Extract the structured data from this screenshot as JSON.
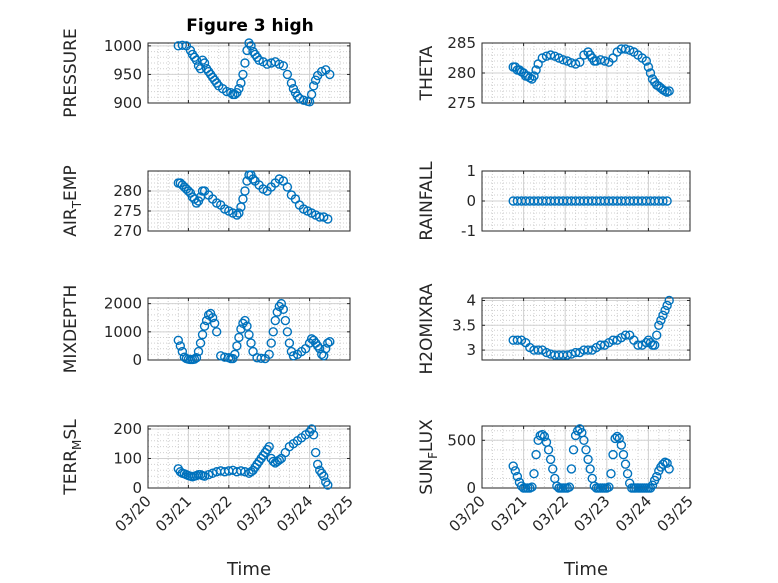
{
  "figure": {
    "title": "Figure 3 high"
  },
  "chart_data": [
    {
      "type": "scatter",
      "id": "pressure",
      "ylabel": "PRESSURE",
      "ylim": [
        900,
        1005
      ],
      "yticks": [
        {
          "v": 900,
          "t": "900"
        },
        {
          "v": 950,
          "t": "950"
        },
        {
          "v": 1000,
          "t": "1000"
        }
      ],
      "series": [
        {
          "x": [
            20.75,
            20.85,
            20.95,
            21.05,
            21.1,
            21.15,
            21.2,
            21.25,
            21.3,
            21.35,
            21.4,
            21.45,
            21.5,
            21.55,
            21.6,
            21.65,
            21.7,
            21.75,
            21.85,
            21.95,
            22.05,
            22.1,
            22.15,
            22.2,
            22.25,
            22.3,
            22.35,
            22.4,
            22.45,
            22.5,
            22.55,
            22.6,
            22.65,
            22.7,
            22.75,
            22.85,
            22.95,
            23.05,
            23.15,
            23.25,
            23.35,
            23.45,
            23.55,
            23.6,
            23.65,
            23.7,
            23.75,
            23.85,
            23.95,
            24.0,
            24.05,
            24.1,
            24.15,
            24.2,
            24.3,
            24.4,
            24.5
          ],
          "y": [
            1000,
            1001,
            1000,
            992,
            985,
            980,
            975,
            965,
            960,
            975,
            970,
            960,
            955,
            950,
            945,
            940,
            935,
            930,
            925,
            920,
            918,
            915,
            915,
            918,
            925,
            935,
            950,
            970,
            992,
            1005,
            1000,
            990,
            985,
            980,
            975,
            972,
            968,
            970,
            972,
            968,
            965,
            950,
            935,
            925,
            918,
            912,
            908,
            905,
            903,
            902,
            915,
            930,
            940,
            948,
            955,
            958,
            950
          ]
        }
      ]
    },
    {
      "type": "scatter",
      "id": "theta",
      "ylabel": "THETA",
      "ylim": [
        275,
        285
      ],
      "yticks": [
        {
          "v": 275,
          "t": "275"
        },
        {
          "v": 280,
          "t": "280"
        },
        {
          "v": 285,
          "t": "285"
        }
      ],
      "series": [
        {
          "x": [
            20.75,
            20.8,
            20.85,
            20.9,
            20.95,
            21.0,
            21.05,
            21.1,
            21.15,
            21.2,
            21.25,
            21.3,
            21.35,
            21.45,
            21.55,
            21.65,
            21.75,
            21.85,
            21.95,
            22.05,
            22.15,
            22.25,
            22.35,
            22.45,
            22.55,
            22.6,
            22.65,
            22.7,
            22.75,
            22.85,
            22.95,
            23.05,
            23.15,
            23.25,
            23.35,
            23.45,
            23.55,
            23.65,
            23.75,
            23.85,
            23.95,
            24.0,
            24.05,
            24.1,
            24.15,
            24.2,
            24.25,
            24.3,
            24.35,
            24.4,
            24.45,
            24.5
          ],
          "y": [
            281,
            281,
            280.5,
            280.5,
            280.2,
            280,
            279.5,
            279.5,
            279.2,
            279,
            279.5,
            280.5,
            281.5,
            282.5,
            282.8,
            283,
            282.8,
            282.5,
            282.2,
            282,
            281.7,
            281.5,
            281.8,
            283,
            283.5,
            283,
            282.5,
            282,
            282,
            282.2,
            282,
            281.8,
            282.5,
            283.5,
            284,
            284,
            283.8,
            283.5,
            283,
            282.5,
            282,
            281,
            280,
            279,
            278.5,
            278,
            277.8,
            277.5,
            277.2,
            277,
            276.8,
            277
          ]
        }
      ]
    },
    {
      "type": "scatter",
      "id": "air_temp",
      "ylabel": "AIR_TEMP",
      "ylim": [
        270,
        285
      ],
      "yticks": [
        {
          "v": 270,
          "t": "270"
        },
        {
          "v": 275,
          "t": "275"
        },
        {
          "v": 280,
          "t": "280"
        }
      ],
      "series": [
        {
          "x": [
            20.75,
            20.8,
            20.85,
            20.9,
            20.95,
            21.0,
            21.05,
            21.1,
            21.15,
            21.2,
            21.25,
            21.3,
            21.35,
            21.4,
            21.5,
            21.6,
            21.7,
            21.8,
            21.9,
            22.0,
            22.1,
            22.2,
            22.25,
            22.3,
            22.35,
            22.4,
            22.45,
            22.5,
            22.55,
            22.6,
            22.65,
            22.75,
            22.85,
            22.95,
            23.05,
            23.15,
            23.25,
            23.35,
            23.45,
            23.55,
            23.65,
            23.75,
            23.85,
            23.95,
            24.05,
            24.15,
            24.25,
            24.35,
            24.45
          ],
          "y": [
            282,
            282,
            281.5,
            281,
            280.5,
            280,
            279.5,
            278.5,
            278,
            277,
            277.5,
            278.5,
            280,
            280,
            279,
            278,
            277,
            276.5,
            275.5,
            275,
            274.5,
            274,
            274.5,
            276,
            278,
            280,
            282.5,
            284,
            284,
            283,
            282.5,
            281.5,
            280.5,
            280,
            281,
            282,
            283,
            282.5,
            281,
            279,
            278,
            276.5,
            275.5,
            275,
            274.5,
            274,
            273.5,
            273.5,
            273
          ]
        }
      ]
    },
    {
      "type": "scatter",
      "id": "rainfall",
      "ylabel": "RAINFALL",
      "ylim": [
        -1,
        1
      ],
      "yticks": [
        {
          "v": -1,
          "t": "-1"
        },
        {
          "v": 0,
          "t": "0"
        },
        {
          "v": 1,
          "t": "1"
        }
      ],
      "series": [
        {
          "x": [
            20.75,
            20.85,
            20.95,
            21.05,
            21.15,
            21.25,
            21.35,
            21.45,
            21.55,
            21.65,
            21.75,
            21.85,
            21.95,
            22.05,
            22.15,
            22.25,
            22.35,
            22.45,
            22.55,
            22.65,
            22.75,
            22.85,
            22.95,
            23.05,
            23.15,
            23.25,
            23.35,
            23.45,
            23.55,
            23.65,
            23.75,
            23.85,
            23.95,
            24.05,
            24.15,
            24.25,
            24.35,
            24.45
          ],
          "y": [
            0,
            0,
            0,
            0,
            0,
            0,
            0,
            0,
            0,
            0,
            0,
            0,
            0,
            0,
            0,
            0,
            0,
            0,
            0,
            0,
            0,
            0,
            0,
            0,
            0,
            0,
            0,
            0,
            0,
            0,
            0,
            0,
            0,
            0,
            0,
            0,
            0,
            0
          ]
        }
      ]
    },
    {
      "type": "scatter",
      "id": "mixdepth",
      "ylabel": "MIXDEPTH",
      "ylim": [
        0,
        2200
      ],
      "yticks": [
        {
          "v": 0,
          "t": "0"
        },
        {
          "v": 1000,
          "t": "1000"
        },
        {
          "v": 2000,
          "t": "2000"
        }
      ],
      "series": [
        {
          "x": [
            20.75,
            20.8,
            20.85,
            20.9,
            20.95,
            21.0,
            21.05,
            21.1,
            21.15,
            21.2,
            21.25,
            21.3,
            21.35,
            21.4,
            21.45,
            21.5,
            21.55,
            21.6,
            21.65,
            21.7,
            21.8,
            21.9,
            22.0,
            22.05,
            22.1,
            22.15,
            22.2,
            22.25,
            22.3,
            22.35,
            22.4,
            22.45,
            22.5,
            22.55,
            22.6,
            22.7,
            22.8,
            22.9,
            23.0,
            23.05,
            23.1,
            23.15,
            23.2,
            23.25,
            23.3,
            23.35,
            23.4,
            23.45,
            23.5,
            23.55,
            23.6,
            23.7,
            23.8,
            23.9,
            24.0,
            24.05,
            24.1,
            24.15,
            24.2,
            24.25,
            24.3,
            24.35,
            24.4,
            24.45,
            24.5
          ],
          "y": [
            700,
            500,
            300,
            100,
            50,
            30,
            20,
            20,
            30,
            80,
            300,
            600,
            900,
            1200,
            1400,
            1600,
            1650,
            1500,
            1300,
            1000,
            150,
            100,
            80,
            50,
            50,
            200,
            500,
            800,
            1100,
            1300,
            1400,
            1200,
            900,
            600,
            300,
            80,
            60,
            50,
            200,
            600,
            1000,
            1400,
            1700,
            1900,
            2000,
            1800,
            1400,
            1000,
            600,
            300,
            150,
            200,
            300,
            400,
            600,
            750,
            700,
            600,
            500,
            400,
            200,
            150,
            400,
            600,
            650
          ]
        }
      ]
    },
    {
      "type": "scatter",
      "id": "h2omixra",
      "ylabel": "H2OMIXRA",
      "ylim": [
        2.8,
        4.05
      ],
      "yticks": [
        {
          "v": 3,
          "t": "3"
        },
        {
          "v": 3.5,
          "t": "3.5"
        },
        {
          "v": 4,
          "t": "4"
        }
      ],
      "series": [
        {
          "x": [
            20.75,
            20.85,
            20.95,
            21.05,
            21.15,
            21.25,
            21.35,
            21.45,
            21.55,
            21.65,
            21.75,
            21.85,
            21.95,
            22.05,
            22.15,
            22.25,
            22.35,
            22.45,
            22.55,
            22.65,
            22.75,
            22.85,
            22.95,
            23.05,
            23.15,
            23.25,
            23.35,
            23.45,
            23.55,
            23.65,
            23.75,
            23.85,
            23.95,
            24.0,
            24.05,
            24.1,
            24.15,
            24.2,
            24.25,
            24.3,
            24.35,
            24.4,
            24.45,
            24.5
          ],
          "y": [
            3.2,
            3.2,
            3.2,
            3.15,
            3.05,
            3.0,
            3.0,
            3.0,
            2.95,
            2.92,
            2.9,
            2.9,
            2.9,
            2.9,
            2.92,
            2.95,
            2.95,
            3.0,
            3.0,
            3.0,
            3.05,
            3.1,
            3.1,
            3.15,
            3.2,
            3.2,
            3.25,
            3.3,
            3.3,
            3.2,
            3.1,
            3.1,
            3.15,
            3.2,
            3.15,
            3.1,
            3.1,
            3.3,
            3.5,
            3.6,
            3.7,
            3.8,
            3.9,
            4.0
          ]
        }
      ]
    },
    {
      "type": "scatter",
      "id": "terr_msl",
      "ylabel": "TERR_MSL",
      "ylim": [
        0,
        210
      ],
      "yticks": [
        {
          "v": 0,
          "t": "0"
        },
        {
          "v": 100,
          "t": "100"
        },
        {
          "v": 200,
          "t": "200"
        }
      ],
      "series": [
        {
          "x": [
            20.75,
            20.8,
            20.85,
            20.9,
            20.95,
            21.0,
            21.05,
            21.1,
            21.15,
            21.2,
            21.25,
            21.3,
            21.35,
            21.4,
            21.5,
            21.6,
            21.7,
            21.8,
            21.9,
            22.0,
            22.1,
            22.2,
            22.3,
            22.4,
            22.5,
            22.55,
            22.6,
            22.65,
            22.7,
            22.75,
            22.8,
            22.85,
            22.9,
            22.95,
            23.0,
            23.05,
            23.1,
            23.15,
            23.2,
            23.25,
            23.3,
            23.4,
            23.5,
            23.6,
            23.7,
            23.8,
            23.9,
            24.0,
            24.05,
            24.1,
            24.15,
            24.2,
            24.25,
            24.3,
            24.35,
            24.4,
            24.45
          ],
          "y": [
            65,
            55,
            50,
            48,
            45,
            42,
            40,
            38,
            40,
            42,
            45,
            45,
            42,
            40,
            45,
            50,
            55,
            58,
            55,
            58,
            60,
            55,
            58,
            55,
            50,
            55,
            60,
            70,
            80,
            90,
            100,
            110,
            120,
            130,
            140,
            100,
            90,
            85,
            90,
            95,
            100,
            120,
            140,
            150,
            160,
            170,
            180,
            190,
            200,
            180,
            120,
            80,
            60,
            50,
            40,
            20,
            10
          ]
        }
      ]
    },
    {
      "type": "scatter",
      "id": "sun_flux",
      "ylabel": "SUN_FLUX",
      "ylim": [
        0,
        650
      ],
      "yticks": [
        {
          "v": 0,
          "t": "0"
        },
        {
          "v": 500,
          "t": "500"
        }
      ],
      "series": [
        {
          "x": [
            20.75,
            20.8,
            20.85,
            20.9,
            20.95,
            21.0,
            21.05,
            21.1,
            21.15,
            21.2,
            21.25,
            21.3,
            21.35,
            21.4,
            21.45,
            21.5,
            21.55,
            21.6,
            21.65,
            21.7,
            21.75,
            21.8,
            21.85,
            21.9,
            21.95,
            22.0,
            22.05,
            22.1,
            22.15,
            22.2,
            22.25,
            22.3,
            22.35,
            22.4,
            22.45,
            22.5,
            22.55,
            22.6,
            22.65,
            22.7,
            22.75,
            22.8,
            22.85,
            22.9,
            22.95,
            23.0,
            23.05,
            23.1,
            23.15,
            23.2,
            23.25,
            23.3,
            23.35,
            23.4,
            23.45,
            23.5,
            23.55,
            23.6,
            23.65,
            23.7,
            23.75,
            23.8,
            23.85,
            23.9,
            23.95,
            24.0,
            24.05,
            24.1,
            24.15,
            24.2,
            24.25,
            24.3,
            24.35,
            24.4,
            24.45,
            24.5
          ],
          "y": [
            230,
            180,
            120,
            60,
            20,
            0,
            0,
            0,
            0,
            10,
            150,
            350,
            500,
            550,
            560,
            540,
            480,
            400,
            300,
            200,
            100,
            20,
            0,
            0,
            0,
            0,
            0,
            10,
            200,
            400,
            550,
            600,
            620,
            580,
            500,
            400,
            300,
            200,
            100,
            20,
            0,
            0,
            0,
            0,
            0,
            0,
            10,
            150,
            350,
            520,
            540,
            520,
            450,
            350,
            250,
            150,
            50,
            0,
            0,
            0,
            0,
            0,
            0,
            0,
            0,
            0,
            0,
            30,
            80,
            120,
            180,
            220,
            250,
            270,
            260,
            200
          ]
        }
      ]
    }
  ],
  "xaxis": {
    "label": "Time",
    "range": [
      20,
      25
    ],
    "ticks": [
      {
        "v": 20,
        "t": "03/20"
      },
      {
        "v": 21,
        "t": "03/21"
      },
      {
        "v": 22,
        "t": "03/22"
      },
      {
        "v": 23,
        "t": "03/23"
      },
      {
        "v": 24,
        "t": "03/24"
      },
      {
        "v": 25,
        "t": "03/25"
      }
    ]
  },
  "colors": {
    "marker": "#0072bd",
    "axis": "#262626"
  }
}
